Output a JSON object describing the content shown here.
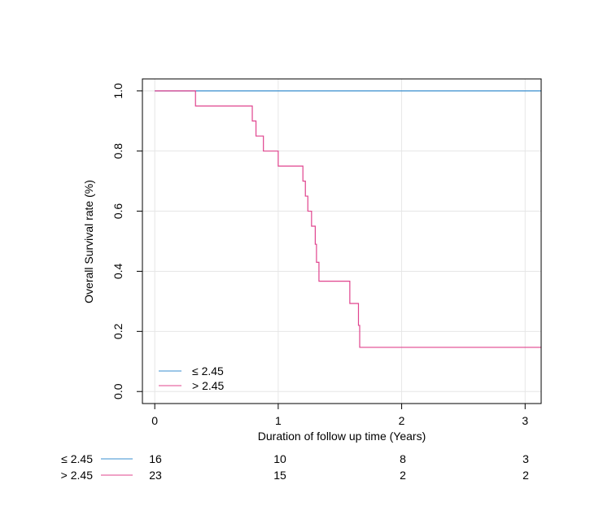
{
  "chart_data": {
    "type": "line",
    "title": "",
    "xlabel": "Duration of follow up time (Years)",
    "ylabel": "Overall Survival rate (%)",
    "xlim": [
      -0.1,
      3.13
    ],
    "ylim": [
      -0.04,
      1.04
    ],
    "x_ticks": [
      0,
      1,
      2,
      3
    ],
    "y_ticks": [
      0.0,
      0.2,
      0.4,
      0.6,
      0.8,
      1.0
    ],
    "x_tick_labels": [
      "0",
      "1",
      "2",
      "3"
    ],
    "y_tick_labels": [
      "0.0",
      "0.2",
      "0.4",
      "0.6",
      "0.8",
      "1.0"
    ],
    "grid": true,
    "legend_position": "bottom-left",
    "series": [
      {
        "name": "≤ 2.45",
        "color": "#3a8fd0",
        "step": true,
        "x": [
          0,
          3.13
        ],
        "y": [
          1.0,
          1.0
        ]
      },
      {
        "name": "> 2.45",
        "color": "#e0448e",
        "step": true,
        "x": [
          0,
          0.33,
          0.79,
          0.82,
          0.88,
          1.0,
          1.2,
          1.22,
          1.24,
          1.27,
          1.3,
          1.31,
          1.33,
          1.58,
          1.65,
          1.66,
          3.13
        ],
        "y": [
          1.0,
          0.95,
          0.9,
          0.85,
          0.8,
          0.75,
          0.7,
          0.65,
          0.6,
          0.55,
          0.49,
          0.43,
          0.367,
          0.293,
          0.22,
          0.147,
          0.147
        ]
      }
    ],
    "risk_table": {
      "rows": [
        {
          "label": "≤ 2.45",
          "color": "#3a8fd0",
          "counts": [
            "16",
            "10",
            "8",
            "3"
          ]
        },
        {
          "label": "> 2.45",
          "color": "#e0448e",
          "counts": [
            "23",
            "15",
            "2",
            "2"
          ]
        }
      ]
    }
  }
}
